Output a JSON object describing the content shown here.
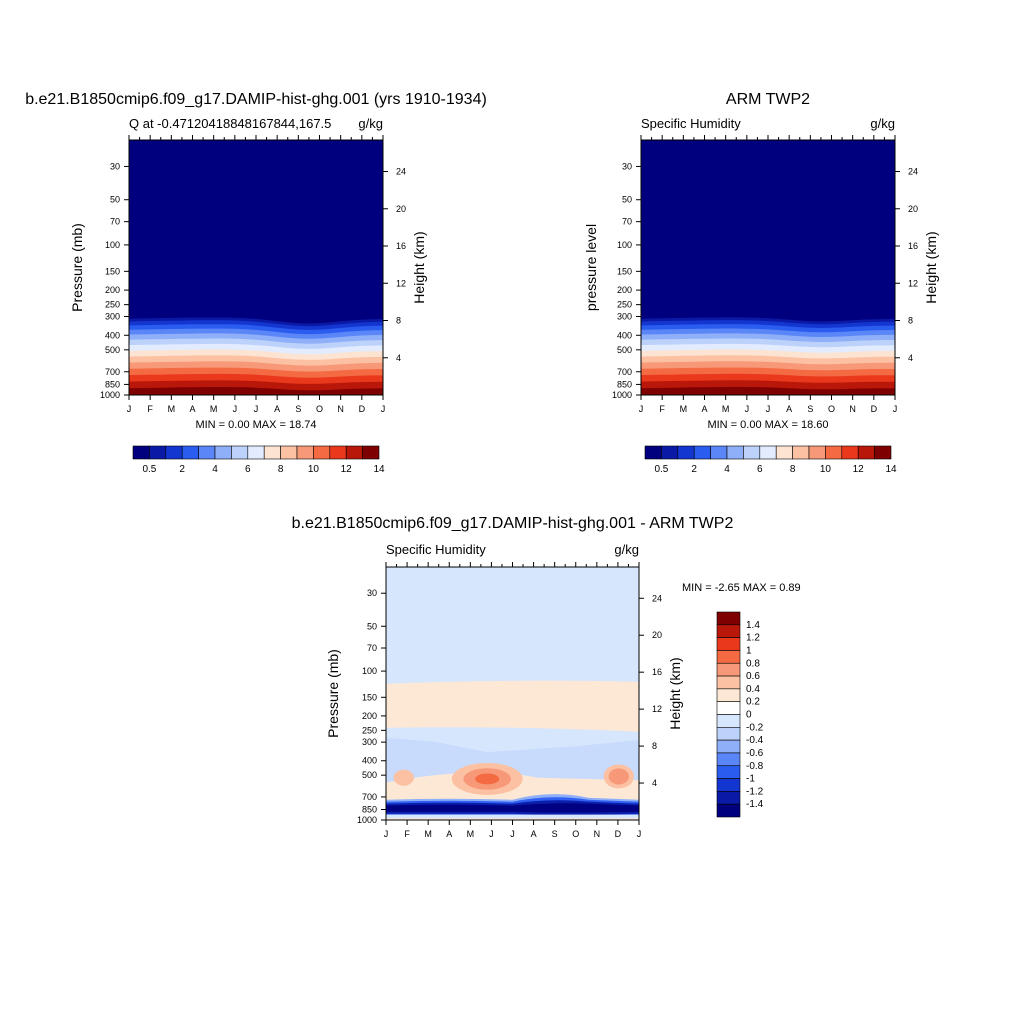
{
  "months": [
    "J",
    "F",
    "M",
    "A",
    "M",
    "J",
    "J",
    "A",
    "S",
    "O",
    "N",
    "D",
    "J"
  ],
  "pressure_ticks": [
    30,
    50,
    70,
    100,
    150,
    200,
    250,
    300,
    400,
    500,
    700,
    850,
    1000
  ],
  "height_ticks": [
    24,
    20,
    16,
    12,
    8,
    4
  ],
  "colors": {
    "abs_palette": [
      "#00007f",
      "#0a1aa6",
      "#1436d0",
      "#2a5cf0",
      "#5a86f7",
      "#8faff8",
      "#bcd2fb",
      "#e2ecfe",
      "#fde3d2",
      "#fbc1a2",
      "#f79978",
      "#f46a43",
      "#e9381c",
      "#b8170a",
      "#7f0000"
    ],
    "diff_palette": [
      "#00007f",
      "#0a1aa6",
      "#1436d0",
      "#2a5cf0",
      "#5a86f7",
      "#8faff8",
      "#bcd2fb",
      "#d6e6fd",
      "#fde8d6",
      "#fbc1a2",
      "#f79978",
      "#f46a43",
      "#e9381c",
      "#b8170a",
      "#7f0000"
    ],
    "frame": "#000000"
  },
  "panels": [
    {
      "id": "model",
      "title": "b.e21.B1850cmip6.f09_g17.DAMIP-hist-ghg.001 (yrs 1910-1934)",
      "left_string": "Q at -0.47120418848167844,167.5",
      "right_string": "g/kg",
      "ylabel": "Pressure (mb)",
      "ylabel_right": "Height (km)",
      "stats": "MIN =   0.00 MAX =  18.74",
      "colorbar_labels": [
        "0.5",
        "2",
        "4",
        "6",
        "8",
        "10",
        "12",
        "14"
      ]
    },
    {
      "id": "obs",
      "title": "ARM TWP2",
      "left_string": "Specific Humidity",
      "right_string": "g/kg",
      "ylabel": "pressure level",
      "ylabel_right": "Height (km)",
      "stats": "MIN =   0.00 MAX =  18.60",
      "colorbar_labels": [
        "0.5",
        "2",
        "4",
        "6",
        "8",
        "10",
        "12",
        "14"
      ]
    },
    {
      "id": "diff",
      "title": "b.e21.B1850cmip6.f09_g17.DAMIP-hist-ghg.001 - ARM TWP2",
      "left_string": "Specific Humidity",
      "right_string": "g/kg",
      "ylabel": "Pressure (mb)",
      "ylabel_right": "Height (km)",
      "stats": "MIN =  -2.65 MAX =   0.89",
      "colorbar_labels": [
        "1.4",
        "1.2",
        "1",
        "0.8",
        "0.6",
        "0.4",
        "0.2",
        "0",
        "-0.2",
        "-0.4",
        "-0.6",
        "-0.8",
        "-1",
        "-1.2",
        "-1.4"
      ]
    }
  ],
  "chart_data": [
    {
      "type": "heatmap",
      "title": "b.e21.B1850cmip6.f09_g17.DAMIP-hist-ghg.001 (yrs 1910-1934)",
      "subtitle": "Q at -0.47120418848167844,167.5",
      "units": "g/kg",
      "xlabel": "",
      "ylabel": "Pressure (mb)",
      "ylabel_right": "Height (km)",
      "x": [
        "J",
        "F",
        "M",
        "A",
        "M",
        "J",
        "J",
        "A",
        "S",
        "O",
        "N",
        "D",
        "J"
      ],
      "y_ticks": [
        30,
        50,
        70,
        100,
        150,
        200,
        250,
        300,
        400,
        500,
        700,
        850,
        1000
      ],
      "ylim": [
        1000,
        20
      ],
      "y_scale": "log",
      "contour_levels": [
        0.5,
        1,
        2,
        3,
        4,
        5,
        6,
        7,
        8,
        9,
        10,
        11,
        12,
        13,
        14
      ],
      "min": 0.0,
      "max": 18.74
    },
    {
      "type": "heatmap",
      "title": "ARM TWP2",
      "subtitle": "Specific Humidity",
      "units": "g/kg",
      "xlabel": "",
      "ylabel": "pressure level",
      "ylabel_right": "Height (km)",
      "x": [
        "J",
        "F",
        "M",
        "A",
        "M",
        "J",
        "J",
        "A",
        "S",
        "O",
        "N",
        "D",
        "J"
      ],
      "y_ticks": [
        30,
        50,
        70,
        100,
        150,
        200,
        250,
        300,
        400,
        500,
        700,
        850,
        1000
      ],
      "ylim": [
        1000,
        20
      ],
      "y_scale": "log",
      "contour_levels": [
        0.5,
        1,
        2,
        3,
        4,
        5,
        6,
        7,
        8,
        9,
        10,
        11,
        12,
        13,
        14
      ],
      "min": 0.0,
      "max": 18.6
    },
    {
      "type": "heatmap",
      "title": "b.e21.B1850cmip6.f09_g17.DAMIP-hist-ghg.001 - ARM TWP2",
      "subtitle": "Specific Humidity",
      "units": "g/kg",
      "xlabel": "",
      "ylabel": "Pressure (mb)",
      "ylabel_right": "Height (km)",
      "x": [
        "J",
        "F",
        "M",
        "A",
        "M",
        "J",
        "J",
        "A",
        "S",
        "O",
        "N",
        "D",
        "J"
      ],
      "y_ticks": [
        30,
        50,
        70,
        100,
        150,
        200,
        250,
        300,
        400,
        500,
        700,
        850,
        1000
      ],
      "ylim": [
        1000,
        20
      ],
      "y_scale": "log",
      "contour_levels": [
        -1.4,
        -1.2,
        -1,
        -0.8,
        -0.6,
        -0.4,
        -0.2,
        0,
        0.2,
        0.4,
        0.6,
        0.8,
        1,
        1.2,
        1.4
      ],
      "min": -2.65,
      "max": 0.89
    }
  ]
}
